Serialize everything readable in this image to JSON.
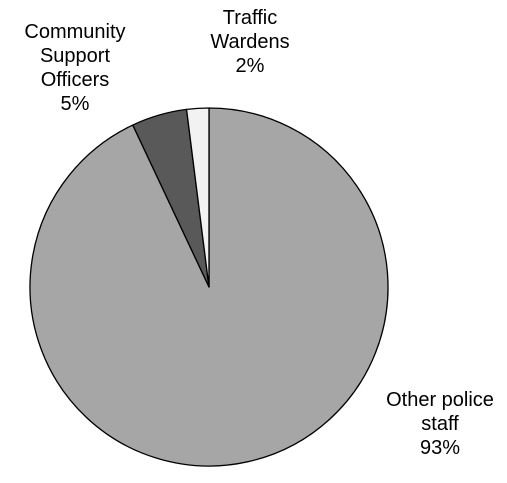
{
  "chart_data": {
    "type": "pie",
    "start_angle_deg": 0,
    "direction": "clockwise",
    "slices": [
      {
        "name": "Other police staff",
        "label_lines": [
          "Other police",
          "staff"
        ],
        "value": 93,
        "value_label": "93%",
        "color": "#A6A6A6"
      },
      {
        "name": "Community Support Officers",
        "label_lines": [
          "Community",
          "Support",
          "Officers"
        ],
        "value": 5,
        "value_label": "5%",
        "color": "#595959"
      },
      {
        "name": "Traffic Wardens",
        "label_lines": [
          "Traffic",
          "Wardens"
        ],
        "value": 2,
        "value_label": "2%",
        "color": "#F2F2F2"
      }
    ],
    "slice_border_color": "#000000",
    "legend": "none"
  }
}
